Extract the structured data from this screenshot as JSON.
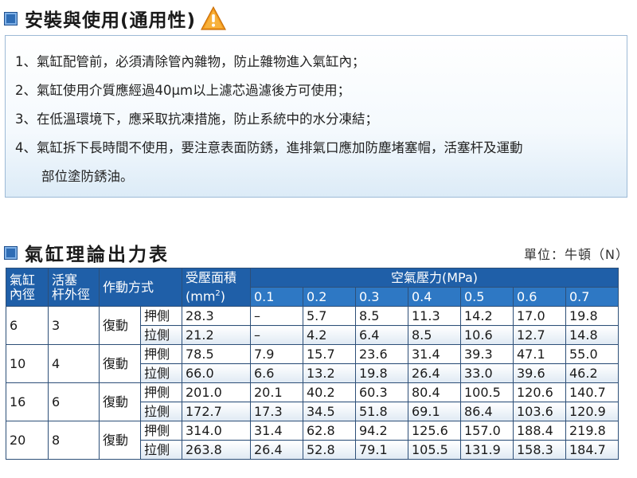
{
  "usage": {
    "title": "安裝與使用(通用性)",
    "items": [
      "1、氣缸配管前，必須清除管內雜物，防止雜物進入氣缸內；",
      "2、氣缸使用介質應經過40μm以上濾芯過濾後方可使用；",
      "3、在低溫環境下，應采取抗凍措施，防止系統中的水分凍結；",
      "4、氣缸拆下長時間不使用，要注意表面防銹，進排氣口應加防塵堵塞帽，活塞杆及運動",
      "部位塗防銹油。"
    ]
  },
  "force_table": {
    "title": "氣缸理論出力表",
    "unit": "單位：牛頓（N）",
    "headers": {
      "bore": [
        "氣缸",
        "內徑"
      ],
      "rod": [
        "活塞",
        "杆外徑"
      ],
      "action": "作動方式",
      "area": "受壓面積",
      "area_unit": "(mm",
      "area_sup": "2",
      "area_close": ")",
      "pressure": "空氣壓力(MPa)",
      "pressures": [
        "0.1",
        "0.2",
        "0.3",
        "0.4",
        "0.5",
        "0.6",
        "0.7"
      ]
    },
    "rows": [
      {
        "bore": "6",
        "rod": "3",
        "type": "復動",
        "push": {
          "side": "押側",
          "area": "28.3",
          "values": [
            "–",
            "5.7",
            "8.5",
            "11.3",
            "14.2",
            "17.0",
            "19.8"
          ]
        },
        "pull": {
          "side": "拉側",
          "area": "21.2",
          "values": [
            "–",
            "4.2",
            "6.4",
            "8.5",
            "10.6",
            "12.7",
            "14.8"
          ]
        }
      },
      {
        "bore": "10",
        "rod": "4",
        "type": "復動",
        "push": {
          "side": "押側",
          "area": "78.5",
          "values": [
            "7.9",
            "15.7",
            "23.6",
            "31.4",
            "39.3",
            "47.1",
            "55.0"
          ]
        },
        "pull": {
          "side": "拉側",
          "area": "66.0",
          "values": [
            "6.6",
            "13.2",
            "19.8",
            "26.4",
            "33.0",
            "39.6",
            "46.2"
          ]
        }
      },
      {
        "bore": "16",
        "rod": "6",
        "type": "復動",
        "push": {
          "side": "押側",
          "area": "201.0",
          "values": [
            "20.1",
            "40.2",
            "60.3",
            "80.4",
            "100.5",
            "120.6",
            "140.7"
          ]
        },
        "pull": {
          "side": "拉側",
          "area": "172.7",
          "values": [
            "17.3",
            "34.5",
            "51.8",
            "69.1",
            "86.4",
            "103.6",
            "120.9"
          ]
        }
      },
      {
        "bore": "20",
        "rod": "8",
        "type": "復動",
        "push": {
          "side": "押側",
          "area": "314.0",
          "values": [
            "31.4",
            "62.8",
            "94.2",
            "125.6",
            "157.0",
            "188.4",
            "219.8"
          ]
        },
        "pull": {
          "side": "拉側",
          "area": "263.8",
          "values": [
            "26.4",
            "52.8",
            "79.1",
            "105.5",
            "131.9",
            "158.3",
            "184.7"
          ]
        }
      }
    ]
  },
  "icons": {
    "section": "square-bullet-icon",
    "warning": "warning-triangle-icon"
  },
  "colors": {
    "header_bg": "#1f5fa8",
    "header_sub_bg": "#2e78c4",
    "bullet": "#2f6db5",
    "warning": "#f39a1b"
  }
}
